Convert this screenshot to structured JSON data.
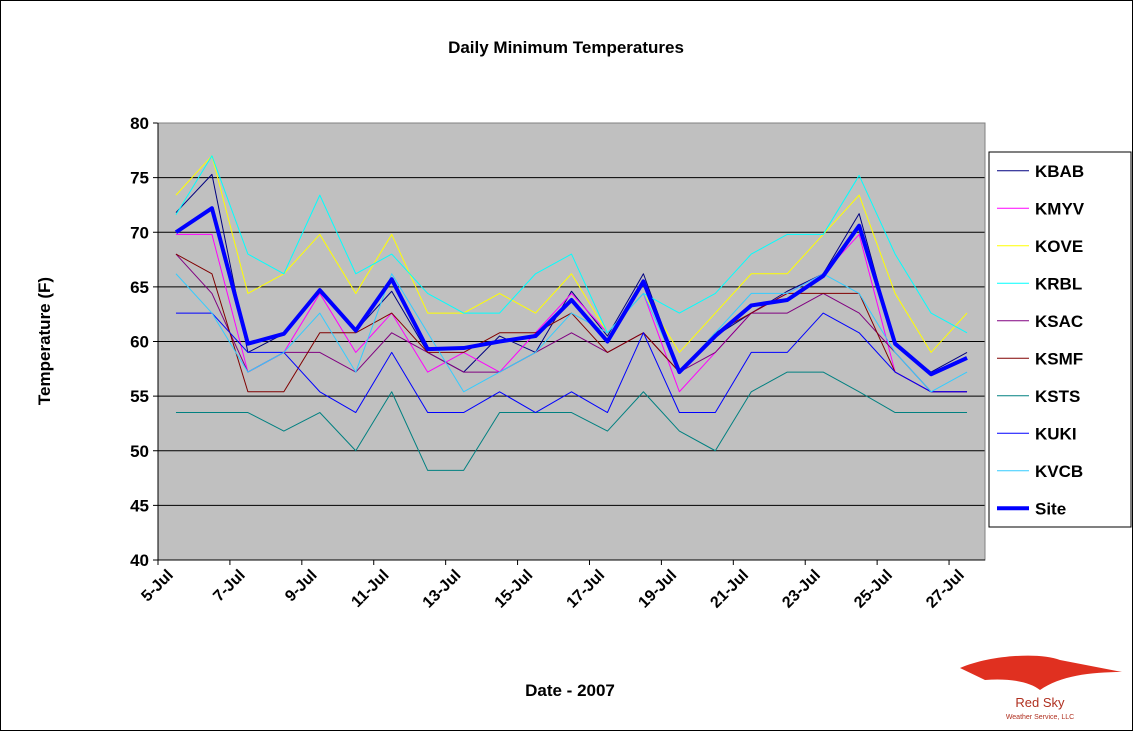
{
  "chart_data": {
    "type": "line",
    "title": "Daily Minimum Temperatures",
    "x_label": "Date - 2007",
    "y_label": "Temperature (F)",
    "categories": [
      "5-Jul",
      null,
      "7-Jul",
      null,
      "9-Jul",
      null,
      "11-Jul",
      null,
      "13-Jul",
      null,
      "15-Jul",
      null,
      "17-Jul",
      null,
      "19-Jul",
      null,
      "21-Jul",
      null,
      "23-Jul",
      null,
      "25-Jul",
      null,
      "27-Jul"
    ],
    "ylim": [
      40,
      80
    ],
    "yticks": [
      40,
      45,
      50,
      55,
      60,
      65,
      70,
      75,
      80
    ],
    "grid": true,
    "legend": "right",
    "series": [
      {
        "name": "KBAB",
        "color": "#000080",
        "values": [
          71.8,
          75.3,
          59,
          60.7,
          64.7,
          61,
          64.6,
          59,
          57.2,
          60.5,
          59,
          64.6,
          60.5,
          66.2,
          57.2,
          60.5,
          62.6,
          64.6,
          66.2,
          71.7,
          59.7,
          57.2,
          59
        ]
      },
      {
        "name": "KMYV",
        "color": "#ff00ff",
        "values": [
          69.8,
          69.8,
          57.2,
          59,
          64.4,
          59,
          62.6,
          57.2,
          59,
          57.2,
          60.8,
          64.4,
          60.8,
          64.4,
          55.4,
          59,
          62.6,
          64.4,
          66.2,
          69.8,
          57.2,
          55.4,
          55.4
        ]
      },
      {
        "name": "KOVE",
        "color": "#ffff00",
        "values": [
          73.4,
          77,
          64.4,
          66.2,
          69.8,
          64.4,
          69.8,
          62.6,
          62.6,
          64.4,
          62.6,
          66.2,
          60.8,
          64.4,
          59,
          62.6,
          66.2,
          66.2,
          69.8,
          73.4,
          64.4,
          59,
          62.6
        ]
      },
      {
        "name": "KRBL",
        "color": "#00ffff",
        "values": [
          71.6,
          77,
          68,
          66.2,
          73.4,
          66.2,
          68,
          64.4,
          62.6,
          62.6,
          66.2,
          68,
          60.8,
          64.4,
          62.6,
          64.4,
          68,
          69.8,
          69.8,
          75.2,
          68,
          62.6,
          60.8
        ]
      },
      {
        "name": "KSAC",
        "color": "#800080",
        "values": [
          68,
          64.4,
          57.2,
          59,
          59,
          57.2,
          60.8,
          59,
          57.2,
          57.2,
          59,
          60.8,
          59,
          60.8,
          57.2,
          59,
          62.6,
          62.6,
          64.4,
          62.6,
          59,
          55.4,
          55.4
        ]
      },
      {
        "name": "KSMF",
        "color": "#800000",
        "values": [
          68,
          66.2,
          55.4,
          55.4,
          60.8,
          60.8,
          62.6,
          59,
          59,
          60.8,
          60.8,
          62.6,
          59,
          60.8,
          57.2,
          60.8,
          62.6,
          64.4,
          64.4,
          64.4,
          57.2,
          55.4,
          55.4
        ]
      },
      {
        "name": "KSTS",
        "color": "#008080",
        "values": [
          53.5,
          53.5,
          53.5,
          51.8,
          53.5,
          50,
          55.4,
          48.2,
          48.2,
          53.5,
          53.5,
          53.5,
          51.8,
          55.4,
          51.8,
          50,
          55.4,
          57.2,
          57.2,
          55.4,
          53.5,
          53.5,
          53.5
        ]
      },
      {
        "name": "KUKI",
        "color": "#0000ff",
        "values": [
          62.6,
          62.6,
          59,
          59,
          55.4,
          53.5,
          59,
          53.5,
          53.5,
          55.4,
          53.5,
          55.4,
          53.5,
          60.8,
          53.5,
          53.5,
          59,
          59,
          62.6,
          60.8,
          57.2,
          55.4,
          55.4
        ]
      },
      {
        "name": "KVCB",
        "color": "#33ccff",
        "values": [
          66.2,
          62.6,
          57.2,
          59,
          62.6,
          57.2,
          66.2,
          60.8,
          55.4,
          57.2,
          59,
          62.6,
          60.8,
          64.4,
          57.2,
          60.8,
          64.4,
          64.4,
          66.2,
          64.4,
          59,
          55.4,
          57.2
        ]
      },
      {
        "name": "Site",
        "color": "#0000ff",
        "width": 4,
        "values": [
          70,
          72.2,
          59.8,
          60.7,
          64.7,
          61,
          65.7,
          59.3,
          59.4,
          60,
          60.5,
          63.8,
          60,
          65.5,
          57.2,
          60.5,
          63.3,
          63.8,
          66,
          70.6,
          59.8,
          57,
          58.5
        ]
      }
    ]
  },
  "logo": {
    "line1": "Red Sky",
    "line2": "Weather Service, LLC"
  }
}
